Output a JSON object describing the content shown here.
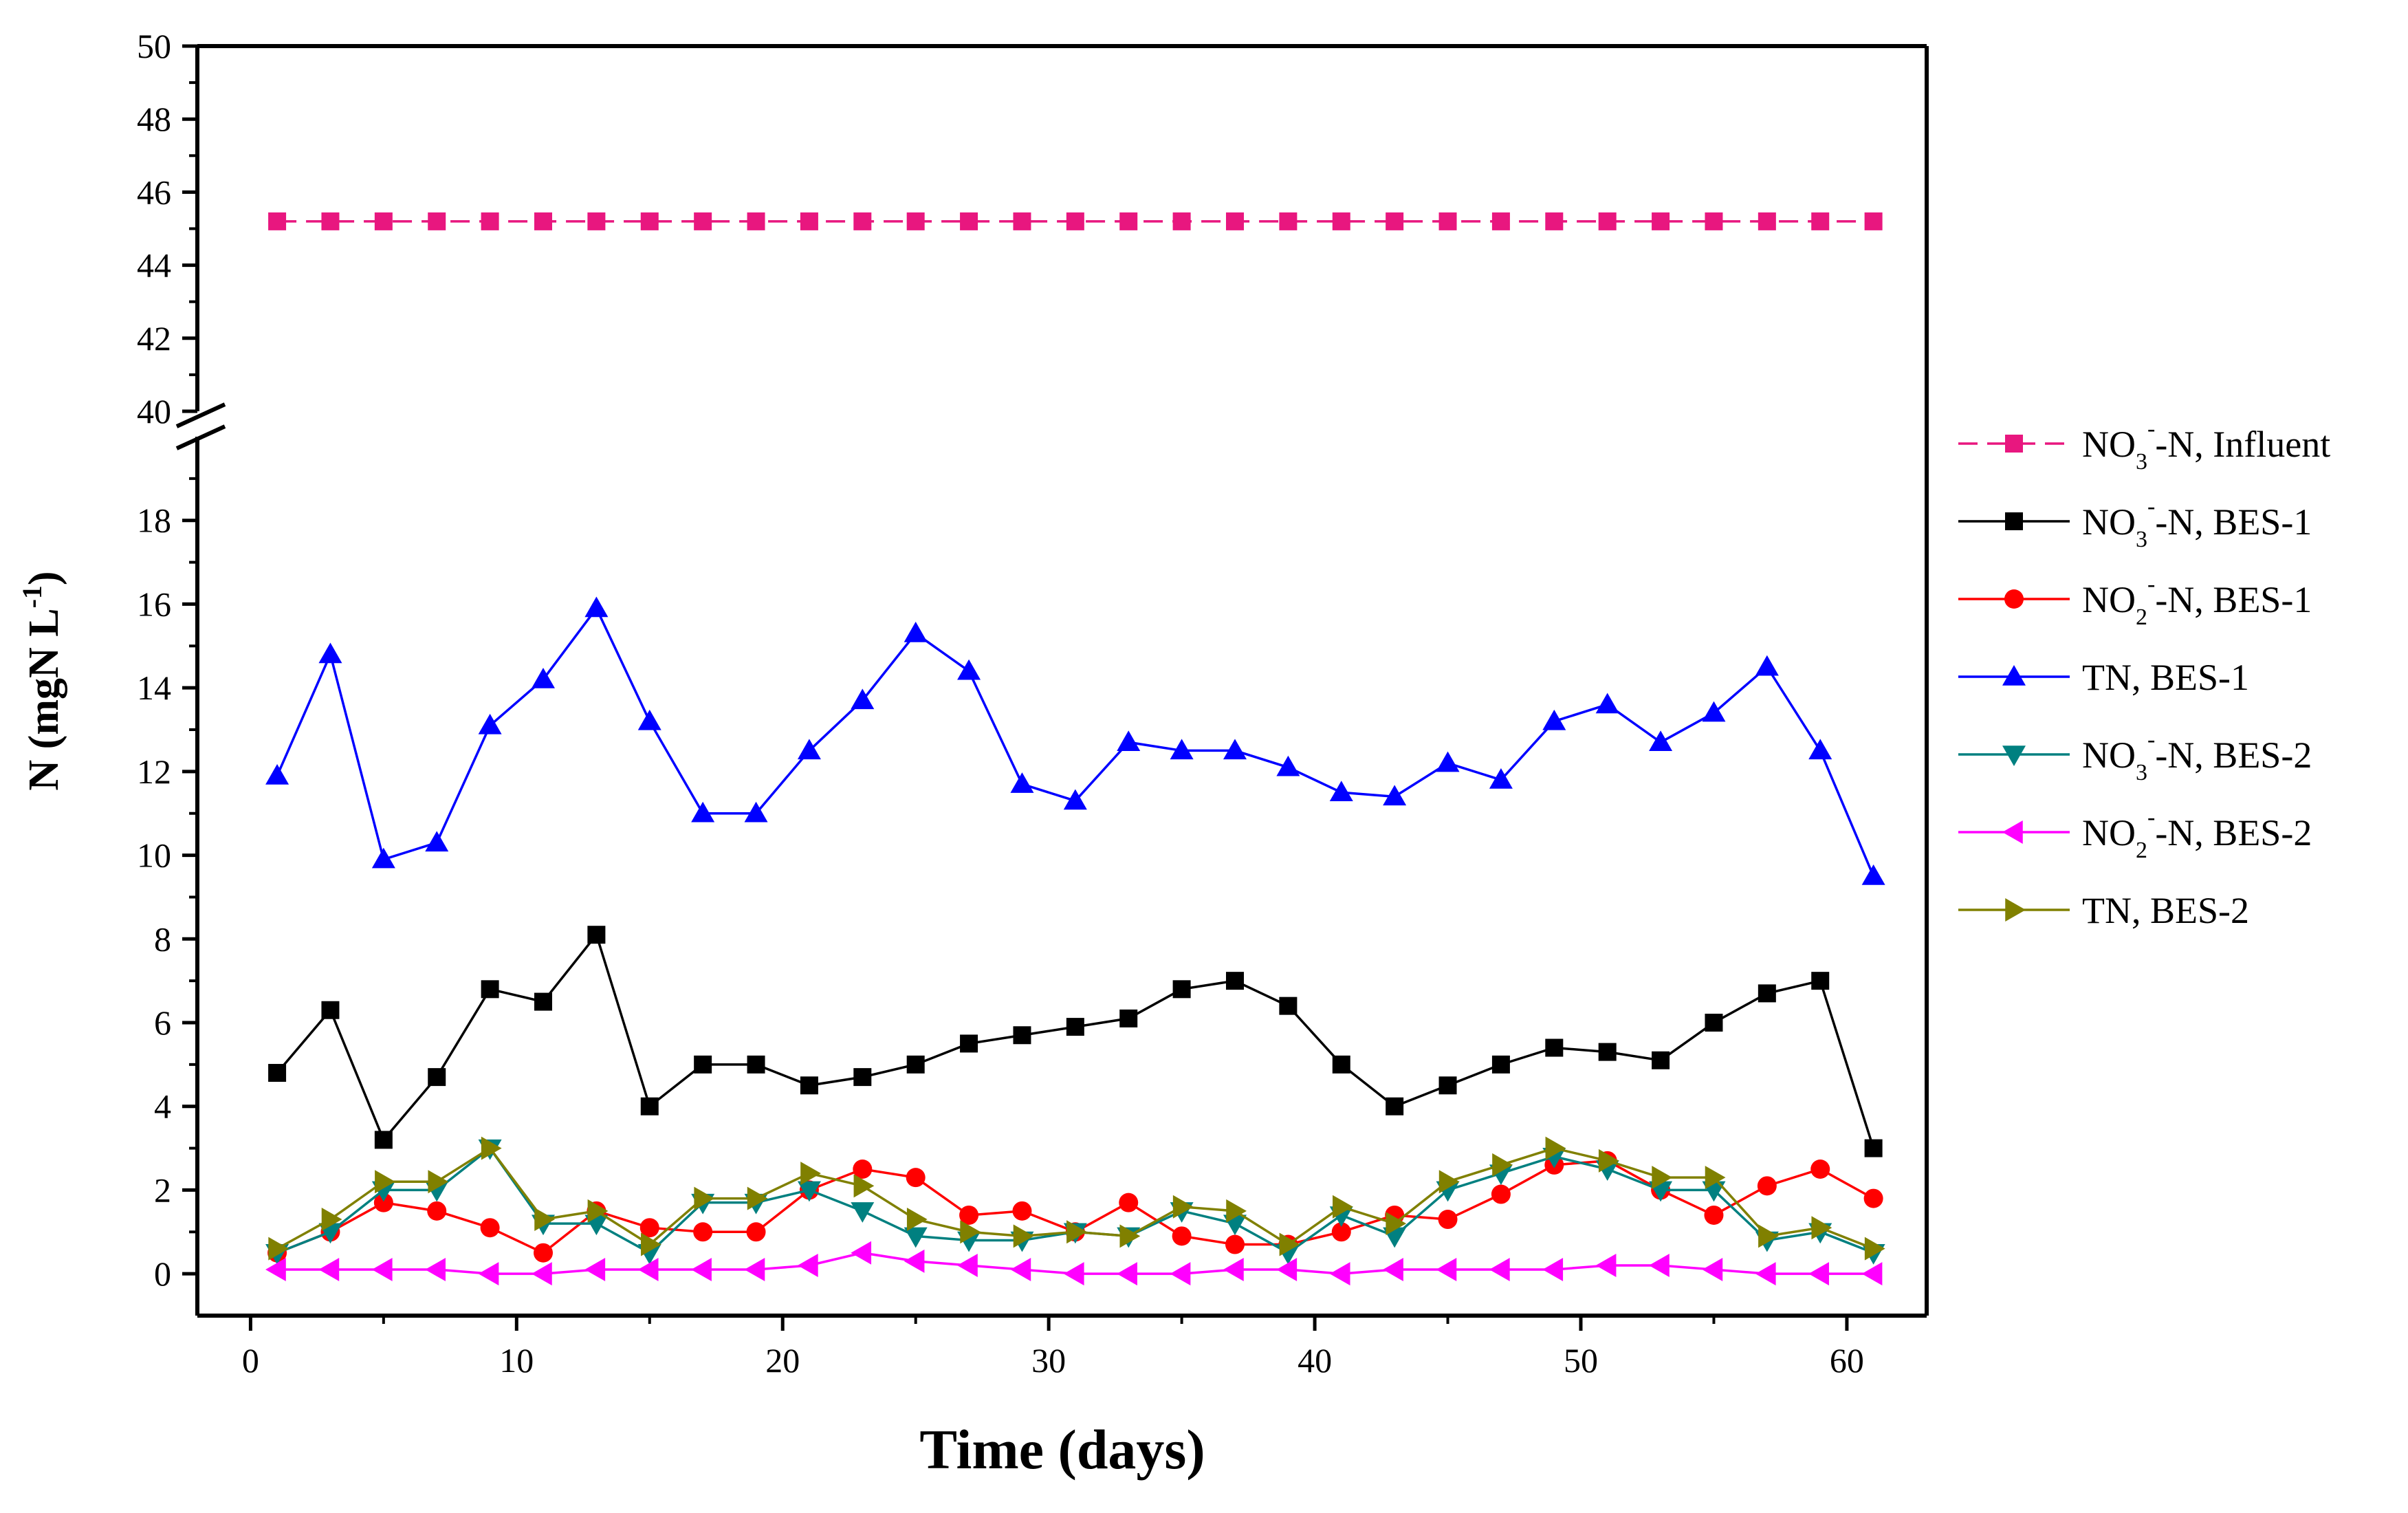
{
  "chart_data": {
    "type": "line",
    "xlabel": "Time (days)",
    "ylabel": "N (mgN L",
    "ylabel_sup": "-1",
    "ylabel_close": ")",
    "xlim": [
      -2,
      63
    ],
    "ylim_lower": [
      -1,
      20
    ],
    "ylim_upper": [
      40,
      50
    ],
    "x_ticks": [
      0,
      10,
      20,
      30,
      40,
      50,
      60
    ],
    "y_ticks_lower": [
      0,
      2,
      4,
      6,
      8,
      10,
      12,
      14,
      16,
      18
    ],
    "y_ticks_upper": [
      40,
      42,
      44,
      46,
      48,
      50
    ],
    "x": [
      1,
      3,
      5,
      7,
      9,
      11,
      13,
      15,
      17,
      19,
      21,
      23,
      25,
      27,
      29,
      31,
      33,
      35,
      37,
      39,
      41,
      43,
      45,
      47,
      49,
      51,
      53,
      55,
      57,
      59,
      61
    ],
    "series": [
      {
        "name": "NO3- -N, Influent",
        "legend_main": "NO",
        "legend_sub": "3",
        "legend_sup": "-",
        "legend_rest": "-N, Influent",
        "color": "#e8177f",
        "marker": "square",
        "line": "dash",
        "values": [
          45.2,
          45.2,
          45.2,
          45.2,
          45.2,
          45.2,
          45.2,
          45.2,
          45.2,
          45.2,
          45.2,
          45.2,
          45.2,
          45.2,
          45.2,
          45.2,
          45.2,
          45.2,
          45.2,
          45.2,
          45.2,
          45.2,
          45.2,
          45.2,
          45.2,
          45.2,
          45.2,
          45.2,
          45.2,
          45.2,
          45.2
        ]
      },
      {
        "name": "NO3- -N, BES-1",
        "legend_main": "NO",
        "legend_sub": "3",
        "legend_sup": "-",
        "legend_rest": "-N, BES-1",
        "color": "#000000",
        "marker": "square",
        "line": "solid",
        "values": [
          4.8,
          6.3,
          3.2,
          4.7,
          6.8,
          6.5,
          8.1,
          4.0,
          5.0,
          5.0,
          4.5,
          4.7,
          5.0,
          5.5,
          5.7,
          5.9,
          6.1,
          6.8,
          7.0,
          6.4,
          5.0,
          4.0,
          4.5,
          5.0,
          5.4,
          5.3,
          5.1,
          6.0,
          6.7,
          7.0,
          3.0
        ]
      },
      {
        "name": "NO2- -N, BES-1",
        "legend_main": "NO",
        "legend_sub": "2",
        "legend_sup": "-",
        "legend_rest": "-N, BES-1",
        "color": "#ff0000",
        "marker": "circle",
        "line": "solid",
        "values": [
          0.5,
          1.0,
          1.7,
          1.5,
          1.1,
          0.5,
          1.5,
          1.1,
          1.0,
          1.0,
          2.0,
          2.5,
          2.3,
          1.4,
          1.5,
          1.0,
          1.7,
          0.9,
          0.7,
          0.7,
          1.0,
          1.4,
          1.3,
          1.9,
          2.6,
          2.7,
          2.0,
          1.4,
          2.1,
          2.5,
          1.8
        ]
      },
      {
        "name": "TN, BES-1",
        "legend_main": "TN, BES-1",
        "legend_sub": "",
        "legend_sup": "",
        "legend_rest": "",
        "color": "#0000ff",
        "marker": "triangle-up",
        "line": "solid",
        "values": [
          11.9,
          14.8,
          9.9,
          10.3,
          13.1,
          14.2,
          15.9,
          13.2,
          11.0,
          11.0,
          12.5,
          13.7,
          15.3,
          14.4,
          11.7,
          11.3,
          12.7,
          12.5,
          12.5,
          12.1,
          11.5,
          11.4,
          12.2,
          11.8,
          13.2,
          13.6,
          12.7,
          13.4,
          14.5,
          12.5,
          9.5
        ]
      },
      {
        "name": "NO3- -N, BES-2",
        "legend_main": "NO",
        "legend_sub": "3",
        "legend_sup": "-",
        "legend_rest": "-N, BES-2",
        "color": "#008080",
        "marker": "triangle-down",
        "line": "solid",
        "values": [
          0.5,
          1.0,
          2.0,
          2.0,
          3.0,
          1.2,
          1.2,
          0.5,
          1.7,
          1.7,
          2.0,
          1.5,
          0.9,
          0.8,
          0.8,
          1.0,
          0.9,
          1.5,
          1.2,
          0.5,
          1.4,
          0.9,
          2.0,
          2.4,
          2.8,
          2.5,
          2.0,
          2.0,
          0.8,
          1.0,
          0.5
        ]
      },
      {
        "name": "NO2- -N, BES-2",
        "legend_main": "NO",
        "legend_sub": "2",
        "legend_sup": "-",
        "legend_rest": "-N, BES-2",
        "color": "#ff00ff",
        "marker": "triangle-left",
        "line": "solid",
        "values": [
          0.1,
          0.1,
          0.1,
          0.1,
          0.0,
          0.0,
          0.1,
          0.1,
          0.1,
          0.1,
          0.2,
          0.5,
          0.3,
          0.2,
          0.1,
          0.0,
          0.0,
          0.0,
          0.1,
          0.1,
          0.0,
          0.1,
          0.1,
          0.1,
          0.1,
          0.2,
          0.2,
          0.1,
          0.0,
          0.0,
          0.0
        ]
      },
      {
        "name": "TN, BES-2",
        "legend_main": "TN, BES-2",
        "legend_sub": "",
        "legend_sup": "",
        "legend_rest": "",
        "color": "#808000",
        "marker": "triangle-right",
        "line": "solid",
        "values": [
          0.6,
          1.3,
          2.2,
          2.2,
          3.0,
          1.3,
          1.5,
          0.7,
          1.8,
          1.8,
          2.4,
          2.1,
          1.3,
          1.0,
          0.9,
          1.0,
          0.9,
          1.6,
          1.5,
          0.7,
          1.6,
          1.2,
          2.2,
          2.6,
          3.0,
          2.7,
          2.3,
          2.3,
          0.9,
          1.1,
          0.6
        ]
      }
    ]
  }
}
